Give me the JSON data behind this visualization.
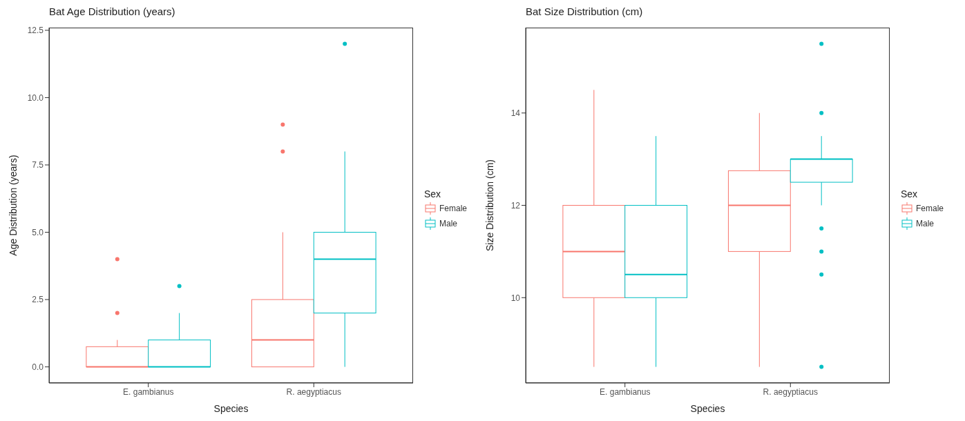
{
  "chart_data": [
    {
      "type": "box",
      "title": "Bat Age Distribution (years)",
      "xlabel": "Species",
      "ylabel": "Age Distribution (years)",
      "legend_title": "Sex",
      "legend": "right",
      "grid": false,
      "categories": [
        "E. gambianus",
        "R. aegyptiacus"
      ],
      "ylim": [
        -0.6,
        12.6
      ],
      "yticks": [
        {
          "value": 0,
          "label": "0.0"
        },
        {
          "value": 2.5,
          "label": "2.5"
        },
        {
          "value": 5,
          "label": "5.0"
        },
        {
          "value": 7.5,
          "label": "7.5"
        },
        {
          "value": 10,
          "label": "10.0"
        },
        {
          "value": 12.5,
          "label": "12.5"
        }
      ],
      "series": [
        {
          "name": "Female",
          "color": "#f8766d",
          "boxes": [
            {
              "low": 0,
              "q1": 0,
              "median": 0,
              "q3": 0.75,
              "high": 1,
              "outliers": [
                2,
                4
              ]
            },
            {
              "low": 0,
              "q1": 0,
              "median": 1,
              "q3": 2.5,
              "high": 5,
              "outliers": [
                8,
                9
              ]
            }
          ]
        },
        {
          "name": "Male",
          "color": "#00bfc4",
          "boxes": [
            {
              "low": 0,
              "q1": 0,
              "median": 0,
              "q3": 1,
              "high": 2,
              "outliers": [
                3
              ]
            },
            {
              "low": 0,
              "q1": 2,
              "median": 4,
              "q3": 5,
              "high": 8,
              "outliers": [
                12
              ]
            }
          ]
        }
      ]
    },
    {
      "type": "box",
      "title": "Bat Size Distribution (cm)",
      "xlabel": "Species",
      "ylabel": "Size Distribution (cm)",
      "legend_title": "Sex",
      "legend": "right",
      "grid": false,
      "categories": [
        "E. gambianus",
        "R. aegyptiacus"
      ],
      "ylim": [
        8.15,
        15.85
      ],
      "yticks": [
        10,
        12,
        14
      ],
      "series": [
        {
          "name": "Female",
          "color": "#f8766d",
          "boxes": [
            {
              "low": 8.5,
              "q1": 10,
              "median": 11,
              "q3": 12,
              "high": 14.5
            },
            {
              "low": 8.5,
              "q1": 11,
              "median": 12,
              "q3": 12.75,
              "high": 14
            }
          ]
        },
        {
          "name": "Male",
          "color": "#00bfc4",
          "boxes": [
            {
              "low": 8.5,
              "q1": 10,
              "median": 10.5,
              "q3": 12,
              "high": 13.5
            },
            {
              "low": 12,
              "q1": 12.5,
              "median": 13,
              "q3": 13,
              "high": 13.5,
              "outliers": [
                15.5,
                14,
                11.5,
                11,
                10.5,
                8.5
              ]
            }
          ]
        }
      ]
    }
  ]
}
